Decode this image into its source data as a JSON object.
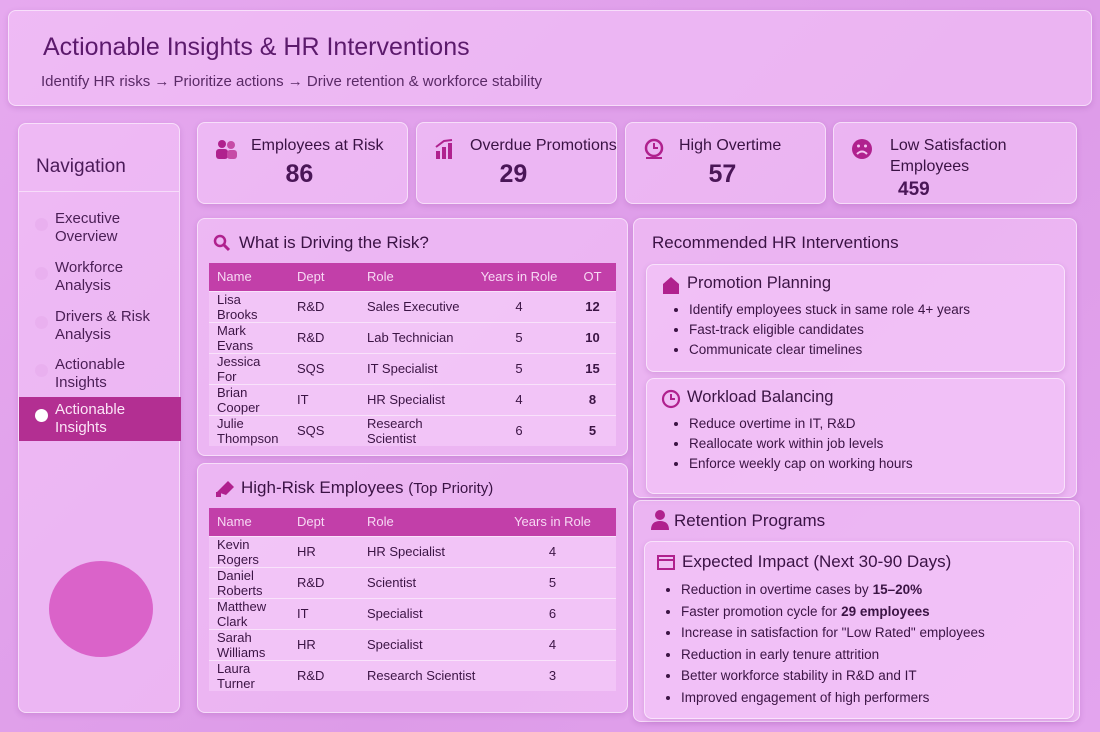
{
  "header": {
    "title": "Actionable Insights & HR Interventions",
    "subtitle": "Identify HR risks → Prioritize actions → Drive retention & workforce stability"
  },
  "nav": {
    "title": "Navigation",
    "active": 4,
    "items": [
      "Executive Overview",
      "Workforce Analysis",
      "Drivers & Risk Analysis",
      "Actionable Insights",
      "Actionable Insights"
    ]
  },
  "kpis": [
    {
      "label": "Employees at Risk",
      "value": 86
    },
    {
      "label": "Overdue Promotions",
      "value": 29
    },
    {
      "label": "High Overtime",
      "value": 57
    },
    {
      "label": "Low Satisfaction Employees",
      "value": 459
    }
  ],
  "drivers": {
    "title": "What is Driving the Risk?",
    "columns": [
      "Name",
      "Dept",
      "Role",
      "Years in Role",
      "OT"
    ],
    "rows": [
      [
        "Lisa Brooks",
        "R&D",
        "Sales Executive",
        4,
        12
      ],
      [
        "Mark Evans",
        "R&D",
        "Lab Technician",
        5,
        10
      ],
      [
        "Jessica For",
        "SQS",
        "IT Specialist",
        5,
        15
      ],
      [
        "Brian Cooper",
        "IT",
        "HR Specialist",
        4,
        8
      ],
      [
        "Julie Thompson",
        "SQS",
        "Research Scientist",
        6,
        5
      ]
    ]
  },
  "high_risk": {
    "title": "High-Risk Employees",
    "subtitle": "(Top Priority)",
    "columns": [
      "Name",
      "Dept",
      "Role",
      "Years in Role"
    ],
    "rows": [
      [
        "Kevin Rogers",
        "HR",
        "HR Specialist",
        4
      ],
      [
        "Daniel Roberts",
        "R&D",
        "Scientist",
        5
      ],
      [
        "Matthew Clark",
        "IT",
        "Specialist",
        6
      ],
      [
        "Sarah Williams",
        "HR",
        "Specialist",
        4
      ],
      [
        "Laura Turner",
        "R&D",
        "Research Scientist",
        3
      ]
    ]
  },
  "interventions": {
    "title": "Recommended HR Interventions",
    "cards": [
      {
        "title": "Promotion Planning",
        "items": [
          "Identify employees stuck in same role 4+ years",
          "Fast-track eligible candidates",
          "Communicate clear timelines"
        ]
      },
      {
        "title": "Workload Balancing",
        "items": [
          "Reduce overtime in IT, R&D",
          "Reallocate work within job levels",
          "Enforce weekly cap on working hours"
        ]
      }
    ]
  },
  "retention": {
    "title": "Retention Programs"
  },
  "impact": {
    "title": "Expected Impact (Next 30-90 Days)",
    "items": [
      {
        "text": "Reduction in overtime cases by",
        "bold": "15–20%"
      },
      {
        "text": "Faster promotion cycle for",
        "bold": "29 employees"
      },
      {
        "text": "Increase in satisfaction for \"Low Rated\" employees"
      },
      {
        "text": "Reduction in early tenure attrition"
      },
      {
        "text": "Better workforce stability in R&D and IT"
      },
      {
        "text": "Improved engagement of high performers"
      }
    ]
  }
}
